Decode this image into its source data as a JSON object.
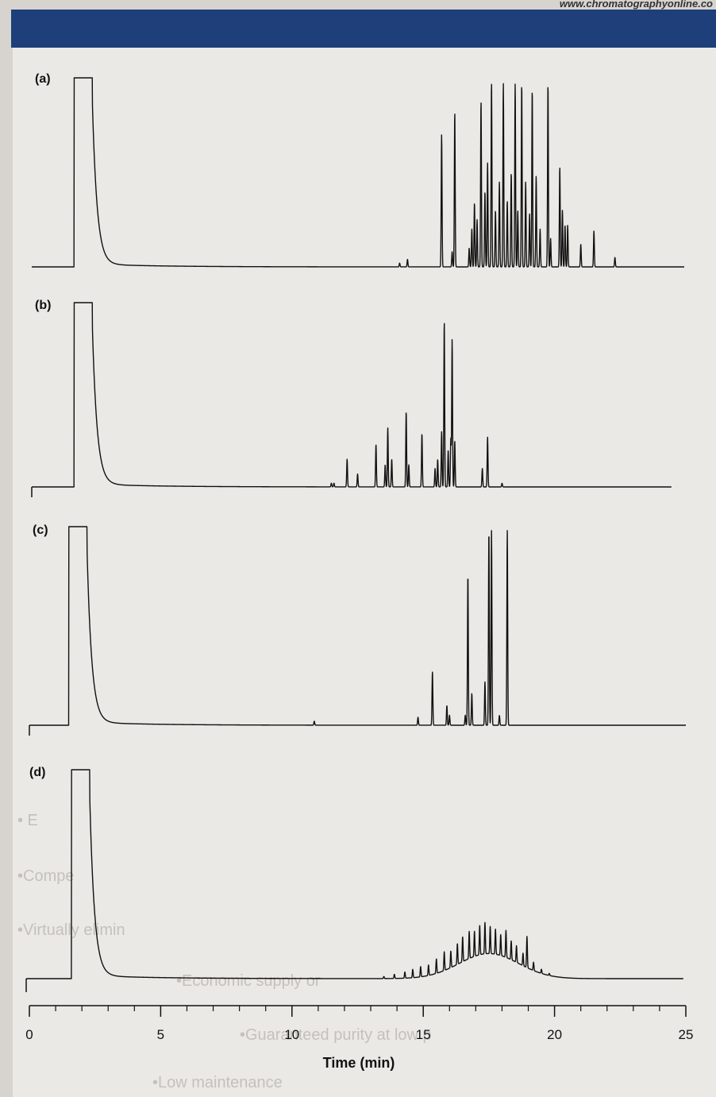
{
  "page": {
    "url_fragment": "www.chromatographyonline.co",
    "header_color": "#1e3f7a",
    "background_text": [
      "• E",
      "•Compe",
      "•Virtually elimin",
      "•Economic supply or",
      "•Guaranteed purity at low p",
      "•Low maintenance"
    ]
  },
  "chart_data": {
    "type": "line",
    "xlabel": "Time (min)",
    "xlim": [
      0,
      25
    ],
    "x_ticks": [
      0,
      5,
      10,
      15,
      20,
      25
    ],
    "grid": false,
    "legend": "none",
    "line_color": "#111111",
    "panels": [
      {
        "label": "(a)",
        "solvent_peak": {
          "start": 1.7,
          "end": 2.4,
          "height": 1.0
        },
        "peaks": [
          {
            "t": 14.1,
            "h": 0.02
          },
          {
            "t": 14.4,
            "h": 0.04
          },
          {
            "t": 15.7,
            "h": 0.7
          },
          {
            "t": 16.1,
            "h": 0.08
          },
          {
            "t": 16.2,
            "h": 0.82
          },
          {
            "t": 16.75,
            "h": 0.1
          },
          {
            "t": 16.85,
            "h": 0.2
          },
          {
            "t": 16.95,
            "h": 0.34
          },
          {
            "t": 17.05,
            "h": 0.25
          },
          {
            "t": 17.2,
            "h": 0.88
          },
          {
            "t": 17.35,
            "h": 0.4
          },
          {
            "t": 17.45,
            "h": 0.55
          },
          {
            "t": 17.6,
            "h": 0.98
          },
          {
            "t": 17.75,
            "h": 0.3
          },
          {
            "t": 17.9,
            "h": 0.45
          },
          {
            "t": 18.05,
            "h": 0.97
          },
          {
            "t": 18.2,
            "h": 0.35
          },
          {
            "t": 18.35,
            "h": 0.5
          },
          {
            "t": 18.5,
            "h": 0.97
          },
          {
            "t": 18.6,
            "h": 0.3
          },
          {
            "t": 18.75,
            "h": 0.97
          },
          {
            "t": 18.9,
            "h": 0.45
          },
          {
            "t": 19.05,
            "h": 0.28
          },
          {
            "t": 19.15,
            "h": 0.94
          },
          {
            "t": 19.3,
            "h": 0.48
          },
          {
            "t": 19.45,
            "h": 0.2
          },
          {
            "t": 19.75,
            "h": 0.97
          },
          {
            "t": 19.85,
            "h": 0.15
          },
          {
            "t": 20.2,
            "h": 0.53
          },
          {
            "t": 20.3,
            "h": 0.3
          },
          {
            "t": 20.4,
            "h": 0.22
          },
          {
            "t": 20.5,
            "h": 0.22
          },
          {
            "t": 21.0,
            "h": 0.12
          },
          {
            "t": 21.5,
            "h": 0.19
          },
          {
            "t": 22.3,
            "h": 0.05
          }
        ]
      },
      {
        "label": "(b)",
        "solvent_peak": {
          "start": 1.7,
          "end": 2.4,
          "height": 1.0
        },
        "peaks": [
          {
            "t": 11.5,
            "h": 0.02
          },
          {
            "t": 11.6,
            "h": 0.02
          },
          {
            "t": 12.1,
            "h": 0.15
          },
          {
            "t": 12.5,
            "h": 0.07
          },
          {
            "t": 13.2,
            "h": 0.23
          },
          {
            "t": 13.55,
            "h": 0.12
          },
          {
            "t": 13.65,
            "h": 0.32
          },
          {
            "t": 13.8,
            "h": 0.15
          },
          {
            "t": 14.35,
            "h": 0.41
          },
          {
            "t": 14.45,
            "h": 0.12
          },
          {
            "t": 14.95,
            "h": 0.29
          },
          {
            "t": 15.45,
            "h": 0.1
          },
          {
            "t": 15.55,
            "h": 0.15
          },
          {
            "t": 15.7,
            "h": 0.3
          },
          {
            "t": 15.8,
            "h": 0.9
          },
          {
            "t": 15.95,
            "h": 0.2
          },
          {
            "t": 16.05,
            "h": 0.26
          },
          {
            "t": 16.1,
            "h": 0.8
          },
          {
            "t": 16.2,
            "h": 0.25
          },
          {
            "t": 17.25,
            "h": 0.1
          },
          {
            "t": 17.45,
            "h": 0.27
          },
          {
            "t": 18.0,
            "h": 0.02
          }
        ]
      },
      {
        "label": "(c)",
        "solvent_peak": {
          "start": 1.5,
          "end": 2.2,
          "height": 1.0
        },
        "peaks": [
          {
            "t": 10.85,
            "h": 0.02
          },
          {
            "t": 14.8,
            "h": 0.04
          },
          {
            "t": 15.35,
            "h": 0.27
          },
          {
            "t": 15.9,
            "h": 0.1
          },
          {
            "t": 16.0,
            "h": 0.05
          },
          {
            "t": 16.6,
            "h": 0.05
          },
          {
            "t": 16.7,
            "h": 0.76
          },
          {
            "t": 16.85,
            "h": 0.16
          },
          {
            "t": 17.35,
            "h": 0.22
          },
          {
            "t": 17.5,
            "h": 0.98
          },
          {
            "t": 17.6,
            "h": 0.98
          },
          {
            "t": 17.9,
            "h": 0.05
          },
          {
            "t": 18.2,
            "h": 0.98
          }
        ]
      },
      {
        "label": "(d)",
        "solvent_peak": {
          "start": 1.6,
          "end": 2.3,
          "height": 1.0
        },
        "hump": {
          "center": 17.5,
          "width": 1.6,
          "height": 0.12
        },
        "peaks": [
          {
            "t": 13.5,
            "h": 0.01
          },
          {
            "t": 13.9,
            "h": 0.02
          },
          {
            "t": 14.3,
            "h": 0.03
          },
          {
            "t": 14.6,
            "h": 0.04
          },
          {
            "t": 14.9,
            "h": 0.05
          },
          {
            "t": 15.2,
            "h": 0.05
          },
          {
            "t": 15.5,
            "h": 0.07
          },
          {
            "t": 15.8,
            "h": 0.09
          },
          {
            "t": 16.05,
            "h": 0.08
          },
          {
            "t": 16.3,
            "h": 0.1
          },
          {
            "t": 16.5,
            "h": 0.12
          },
          {
            "t": 16.75,
            "h": 0.13
          },
          {
            "t": 16.95,
            "h": 0.12
          },
          {
            "t": 17.15,
            "h": 0.14
          },
          {
            "t": 17.35,
            "h": 0.15
          },
          {
            "t": 17.55,
            "h": 0.13
          },
          {
            "t": 17.75,
            "h": 0.12
          },
          {
            "t": 17.95,
            "h": 0.1
          },
          {
            "t": 18.15,
            "h": 0.13
          },
          {
            "t": 18.35,
            "h": 0.09
          },
          {
            "t": 18.55,
            "h": 0.08
          },
          {
            "t": 18.8,
            "h": 0.06
          },
          {
            "t": 18.95,
            "h": 0.15
          },
          {
            "t": 19.2,
            "h": 0.04
          },
          {
            "t": 19.5,
            "h": 0.02
          },
          {
            "t": 19.8,
            "h": 0.01
          }
        ]
      }
    ]
  }
}
